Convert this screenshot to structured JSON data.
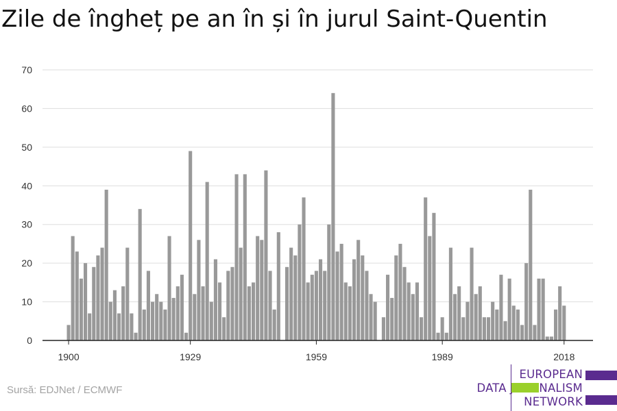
{
  "chart_data": {
    "type": "bar",
    "title": "Zile de îngheț pe an în și în jurul Saint-Quentin",
    "xlabel": "",
    "ylabel": "",
    "x": [
      1900,
      1901,
      1902,
      1903,
      1904,
      1905,
      1906,
      1907,
      1908,
      1909,
      1910,
      1911,
      1912,
      1913,
      1914,
      1915,
      1916,
      1917,
      1918,
      1919,
      1920,
      1921,
      1922,
      1923,
      1924,
      1925,
      1926,
      1927,
      1928,
      1929,
      1930,
      1931,
      1932,
      1933,
      1934,
      1935,
      1936,
      1937,
      1938,
      1939,
      1940,
      1941,
      1942,
      1943,
      1944,
      1945,
      1946,
      1947,
      1948,
      1949,
      1950,
      1951,
      1952,
      1953,
      1954,
      1955,
      1956,
      1957,
      1958,
      1959,
      1960,
      1961,
      1962,
      1963,
      1964,
      1965,
      1966,
      1967,
      1968,
      1969,
      1970,
      1971,
      1972,
      1973,
      1974,
      1975,
      1976,
      1977,
      1978,
      1979,
      1980,
      1981,
      1982,
      1983,
      1984,
      1985,
      1986,
      1987,
      1988,
      1989,
      1990,
      1991,
      1992,
      1993,
      1994,
      1995,
      1996,
      1997,
      1998,
      1999,
      2000,
      2001,
      2002,
      2003,
      2004,
      2005,
      2006,
      2007,
      2008,
      2009,
      2010,
      2011,
      2012,
      2013,
      2014,
      2015,
      2016,
      2017,
      2018
    ],
    "values": [
      4,
      27,
      23,
      16,
      20,
      7,
      19,
      22,
      24,
      39,
      10,
      13,
      7,
      14,
      24,
      7,
      2,
      34,
      8,
      18,
      10,
      12,
      10,
      8,
      27,
      11,
      14,
      17,
      2,
      49,
      12,
      26,
      14,
      41,
      10,
      21,
      15,
      6,
      18,
      19,
      43,
      24,
      43,
      14,
      15,
      27,
      26,
      44,
      18,
      8,
      28,
      0,
      19,
      24,
      22,
      30,
      37,
      15,
      17,
      18,
      21,
      18,
      30,
      64,
      23,
      25,
      15,
      14,
      21,
      26,
      22,
      18,
      12,
      10,
      0,
      6,
      17,
      11,
      22,
      25,
      19,
      15,
      12,
      15,
      6,
      37,
      27,
      33,
      2,
      6,
      2,
      24,
      12,
      14,
      6,
      10,
      24,
      12,
      14,
      6,
      6,
      10,
      8,
      17,
      5,
      16,
      9,
      8,
      4,
      20,
      39,
      4,
      16,
      16,
      1,
      1,
      8,
      14,
      9
    ],
    "x_ticks": [
      "1900",
      "1929",
      "1959",
      "1989",
      "2018"
    ],
    "x_tick_years": [
      1900,
      1929,
      1959,
      1989,
      2018
    ],
    "y_ticks": [
      "0",
      "10",
      "20",
      "30",
      "40",
      "50",
      "60",
      "70"
    ],
    "y_tick_values": [
      0,
      10,
      20,
      30,
      40,
      50,
      60,
      70
    ],
    "ylim": [
      0,
      70
    ],
    "grid": true,
    "bar_color": "#999999",
    "grid_color": "#dddddd"
  },
  "source": "Sursă: EDJNet / ECMWF",
  "logo": {
    "lines": [
      "EUROPEAN",
      "DATA JOURNALISM",
      "NETWORK"
    ],
    "text_color": "#5a2b8f",
    "bar_colors": [
      "#5a2b8f",
      "#9ad02b",
      "#5a2b8f"
    ]
  }
}
